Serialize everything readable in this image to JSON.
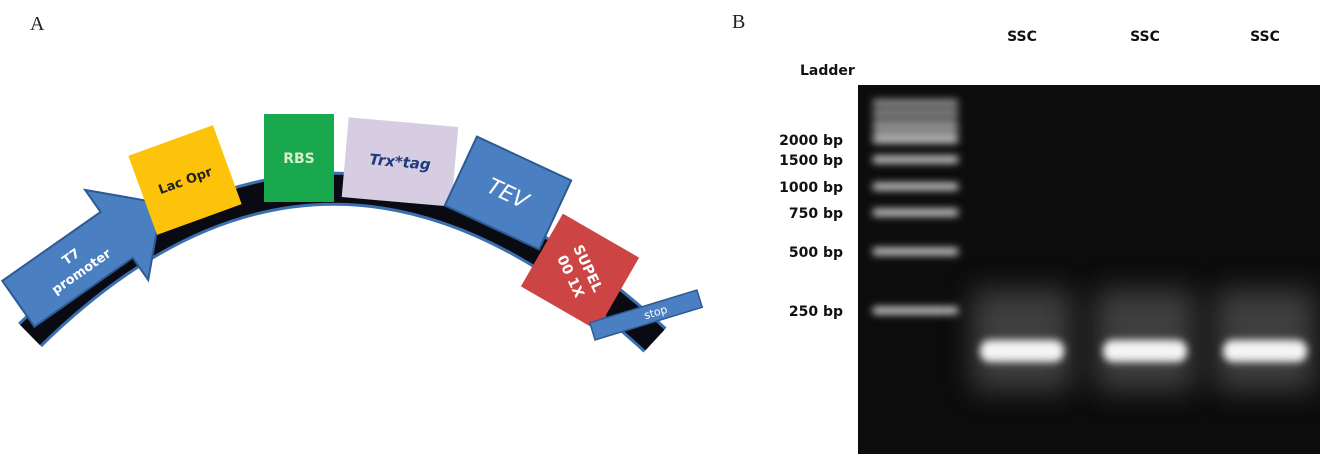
{
  "panel_a": {
    "label": "A",
    "elements": {
      "promoter": [
        "T7",
        "promoter"
      ],
      "lac": "Lac Opr",
      "rbs": "RBS",
      "trx": "Trx*tag",
      "tev": "TEV",
      "supel": [
        "SUPEL",
        "00 1X"
      ],
      "stop": "stop"
    }
  },
  "panel_b": {
    "label": "B",
    "lanes": [
      "SSC",
      "SSC",
      "SSC"
    ],
    "ladder_title": "Ladder",
    "ladder": [
      "2000 bp",
      "1500 bp",
      "1000 bp",
      "750 bp",
      "500 bp",
      "250 bp"
    ]
  }
}
